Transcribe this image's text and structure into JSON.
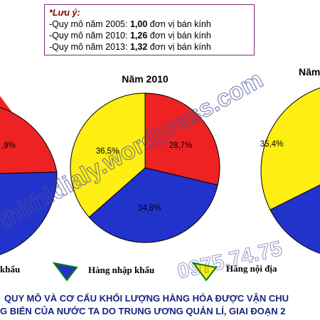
{
  "note": {
    "title": "*Lưu ý:",
    "lines": [
      {
        "prefix": "-Quy mô năm 2005: ",
        "value": "1,00",
        "suffix": " đơn vị bán kính"
      },
      {
        "prefix": "-Quy mô năm 2010: ",
        "value": "1,26",
        "suffix": " đơn vị bán kính"
      },
      {
        "prefix": "-Quy mô năm 2013: ",
        "value": "1,32",
        "suffix": " đơn vị bán kính"
      }
    ]
  },
  "chart_data": {
    "type": "pie",
    "charts": [
      {
        "title": "",
        "slices": [
          {
            "category": "Hàng xuất khẩu",
            "value": null,
            "label": ",9%"
          },
          {
            "category": "Hàng nhập khẩu",
            "value": null,
            "label": ""
          },
          {
            "category": "Hàng nội địa",
            "value": null,
            "label": ""
          }
        ]
      },
      {
        "title": "Năm 2010",
        "slices": [
          {
            "category": "Hàng xuất khẩu",
            "value": 28.7,
            "label": "28,7%"
          },
          {
            "category": "Hàng nhập khẩu",
            "value": 34.8,
            "label": "34,8%"
          },
          {
            "category": "Hàng nội địa",
            "value": 36.5,
            "label": "36,5%"
          }
        ]
      },
      {
        "title": "Năm",
        "slices": [
          {
            "category": "Hàng nội địa",
            "value": 35.4,
            "label": "35,4%"
          },
          {
            "category": "Hàng nhập khẩu",
            "value": null,
            "label": ""
          }
        ]
      }
    ],
    "legend": [
      {
        "label": "khẩu",
        "color": "#ee2222"
      },
      {
        "label": "Hàng nhập khẩu",
        "color": "#2233cc"
      },
      {
        "label": "Hàng nội địa",
        "color": "#ffee11"
      }
    ],
    "colors": {
      "export": "#ee2222",
      "import": "#2233cc",
      "domestic": "#ffee11"
    },
    "caption_lines": [
      "QUY MÔ VÀ CƠ CẤU KHỐI LƯỢNG HÀNG HÓA ĐƯỢC VẬN CHU",
      "G BIỂN CỦA NƯỚC TA DO TRUNG ƯƠNG QUẢN LÍ, GIAI ĐOẠN 2"
    ]
  },
  "watermark": {
    "text": "thithidialy.wordpress.com",
    "phone": "0975.74.75",
    "color": "#4a4f9a"
  }
}
